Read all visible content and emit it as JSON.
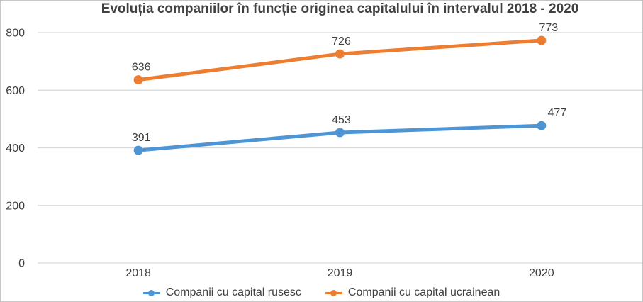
{
  "chart_data": {
    "type": "line",
    "title": "Evoluția companiilor în funcție originea capitalului în intervalul 2018 - 2020",
    "categories": [
      "2018",
      "2019",
      "2020"
    ],
    "series": [
      {
        "name": "Companii cu capital rusesc",
        "values": [
          391,
          453,
          477
        ],
        "color": "#4E95D5",
        "label_dx": [
          4,
          2,
          22
        ]
      },
      {
        "name": "Companii cu capital ucrainean",
        "values": [
          636,
          726,
          773
        ],
        "color": "#ED7D31",
        "label_dx": [
          4,
          2,
          10
        ]
      }
    ],
    "ylim": [
      0,
      800
    ],
    "yticks": [
      0,
      200,
      400,
      600,
      800
    ],
    "grid": true,
    "legend_position": "bottom",
    "marker": "circle",
    "text_color": "#404040",
    "gridline_color": "#D9D9D9"
  }
}
